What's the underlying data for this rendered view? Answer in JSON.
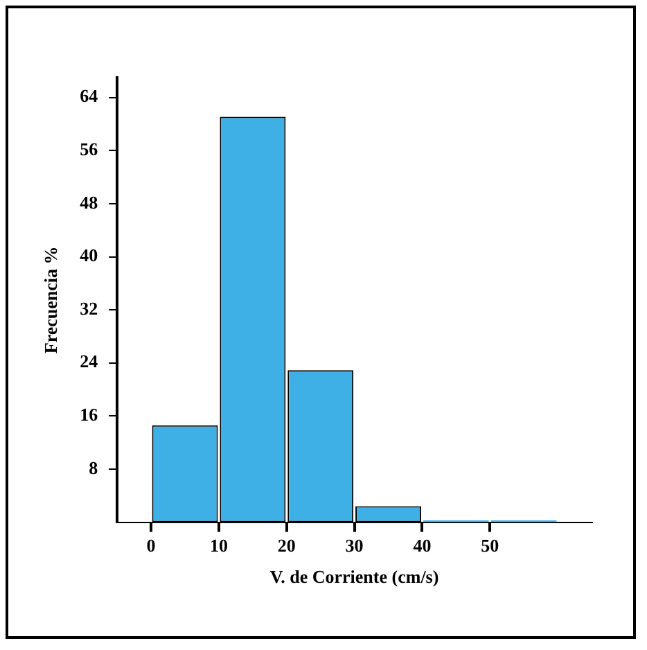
{
  "chart_data": {
    "type": "histogram",
    "xlabel": "V. de Corriente (cm/s)",
    "ylabel": "Frecuencia %",
    "bins": [
      0,
      10,
      20,
      30,
      40,
      50,
      60
    ],
    "values": [
      14.6,
      61.1,
      22.9,
      2.4,
      0.3,
      0.3
    ],
    "color": "#3fb0e6",
    "xlim": [
      -5,
      65
    ],
    "xticks": [
      0,
      10,
      20,
      30,
      40,
      50
    ],
    "ylim": [
      0,
      67
    ],
    "yticks": [
      8,
      16,
      24,
      32,
      40,
      48,
      56,
      64
    ]
  }
}
